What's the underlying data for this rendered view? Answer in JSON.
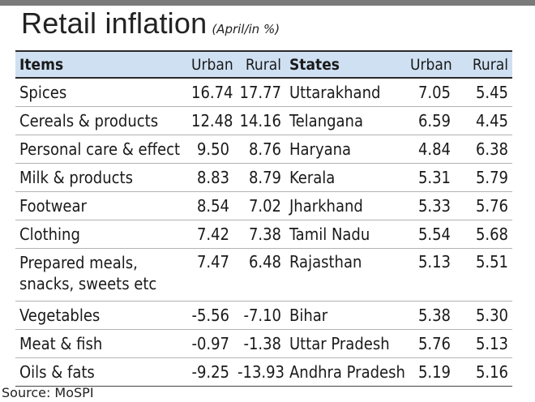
{
  "title": "Retail inflation",
  "subtitle": "(April/in %)",
  "headers": {
    "items": "Items",
    "urban1": "Urban",
    "rural1": "Rural",
    "states": "States",
    "urban2": "Urban",
    "rural2": "Rural"
  },
  "rows": [
    {
      "item": "Spices",
      "item_urban": "16.74",
      "item_rural": "17.77",
      "state": "Uttarakhand",
      "state_urban": "7.05",
      "state_rural": "5.45"
    },
    {
      "item": "Cereals & products",
      "item_urban": "12.48",
      "item_rural": "14.16",
      "state": "Telangana",
      "state_urban": "6.59",
      "state_rural": "4.45"
    },
    {
      "item": "Personal care & effect",
      "item_urban": "9.50",
      "item_rural": "8.76",
      "state": "Haryana",
      "state_urban": "4.84",
      "state_rural": "6.38"
    },
    {
      "item": "Milk & products",
      "item_urban": "8.83",
      "item_rural": "8.79",
      "state": "Kerala",
      "state_urban": "5.31",
      "state_rural": "5.79"
    },
    {
      "item": "Footwear",
      "item_urban": "8.54",
      "item_rural": "7.02",
      "state": "Jharkhand",
      "state_urban": "5.33",
      "state_rural": "5.76"
    },
    {
      "item": "Clothing",
      "item_urban": "7.42",
      "item_rural": "7.38",
      "state": "Tamil Nadu",
      "state_urban": "5.54",
      "state_rural": "5.68"
    },
    {
      "item": "Prepared meals, snacks, sweets etc",
      "item_urban": "7.47",
      "item_rural": "6.48",
      "state": "Rajasthan",
      "state_urban": "5.13",
      "state_rural": "5.51"
    },
    {
      "item": "Vegetables",
      "item_urban": "-5.56",
      "item_rural": "-7.10",
      "state": "Bihar",
      "state_urban": "5.38",
      "state_rural": "5.30"
    },
    {
      "item": "Meat & fish",
      "item_urban": "-0.97",
      "item_rural": "-1.38",
      "state": "Uttar Pradesh",
      "state_urban": "5.76",
      "state_rural": "5.13"
    },
    {
      "item": "Oils & fats",
      "item_urban": "-9.25",
      "item_rural": "-13.93",
      "state": "Andhra Pradesh",
      "state_urban": "5.19",
      "state_rural": "5.16"
    }
  ],
  "source": "Source: MoSPI",
  "colors": {
    "header_bg": "#cfe0f2",
    "top_bar": "#7a7a7a",
    "rule": "#b3b3b3"
  }
}
